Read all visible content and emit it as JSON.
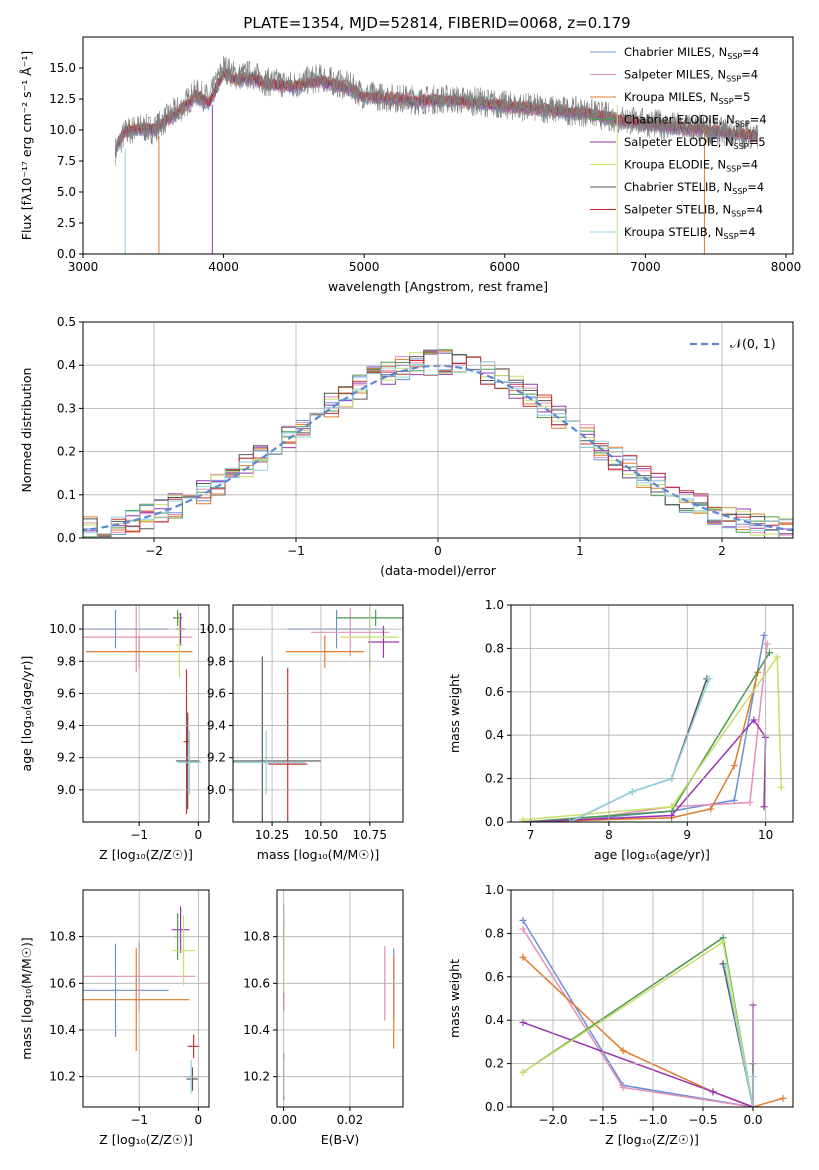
{
  "figure": {
    "title": "PLATE=1354, MJD=52814, FIBERID=0068, z=0.179"
  },
  "colors": [
    "#6b8fd6",
    "#e58fb9",
    "#e07b2c",
    "#4c9a4c",
    "#9a35b0",
    "#c8e06a",
    "#555555",
    "#c83232",
    "#8fd4e0"
  ],
  "chart_data": [
    {
      "id": "spectrum",
      "type": "line",
      "title": "PLATE=1354, MJD=52814, FIBERID=0068, z=0.179",
      "xlabel": "wavelength [Angstrom, rest frame]",
      "ylabel": "Flux [fλ10⁻¹⁷ erg cm⁻² s⁻¹ Å⁻¹]",
      "xlim": [
        3000,
        8050
      ],
      "ylim": [
        0,
        17.5
      ],
      "xticks": [
        "3000",
        "4000",
        "5000",
        "6000",
        "7000",
        "8000"
      ],
      "yticks": [
        "0.0",
        "2.5",
        "5.0",
        "7.5",
        "10.0",
        "12.5",
        "15.0"
      ],
      "legend_position": "right",
      "data_color": "#808080",
      "data": {
        "x": [
          3230,
          3300,
          3400,
          3500,
          3600,
          3700,
          3800,
          3900,
          4000,
          4100,
          4200,
          4300,
          4400,
          4500,
          4600,
          4700,
          4800,
          4900,
          5000,
          5200,
          5400,
          5600,
          5800,
          6000,
          6200,
          6400,
          6600,
          6800,
          7000,
          7200,
          7400,
          7600,
          7800
        ],
        "y": [
          8.3,
          9.8,
          10.2,
          10.0,
          11.0,
          11.8,
          13.0,
          12.5,
          15.0,
          14.3,
          14.5,
          13.9,
          13.8,
          13.6,
          14.0,
          14.2,
          13.8,
          13.5,
          12.8,
          12.6,
          12.4,
          12.5,
          12.3,
          12.0,
          11.8,
          11.6,
          11.4,
          10.9,
          10.6,
          10.3,
          10.1,
          9.8,
          9.6
        ]
      },
      "model": {
        "x": [
          3230,
          3300,
          3400,
          3500,
          3600,
          3700,
          3800,
          3900,
          4000,
          4100,
          4200,
          4300,
          4400,
          4500,
          4600,
          4700,
          4800,
          4900,
          5000,
          5200,
          5400,
          5600,
          5800,
          6000,
          6200,
          6400,
          6600,
          6800,
          7000,
          7200,
          7400,
          7600,
          7800
        ],
        "y": [
          8.5,
          9.9,
          10.1,
          10.0,
          10.8,
          11.6,
          12.7,
          12.2,
          14.6,
          14.0,
          14.2,
          13.7,
          13.6,
          13.5,
          13.8,
          13.9,
          13.6,
          13.3,
          12.7,
          12.5,
          12.3,
          12.4,
          12.2,
          11.9,
          11.7,
          11.5,
          11.3,
          10.8,
          10.5,
          10.2,
          10.0,
          9.7,
          9.5
        ]
      },
      "series": [
        {
          "name": "Chabrier MILES, N",
          "sub": "SSP",
          "suffix": "=4",
          "color_index": 0
        },
        {
          "name": "Salpeter MILES, N",
          "sub": "SSP",
          "suffix": "=4",
          "color_index": 1
        },
        {
          "name": "Kroupa MILES, N",
          "sub": "SSP",
          "suffix": "=5",
          "color_index": 2
        },
        {
          "name": "Chabrier ELODIE, N",
          "sub": "SSP",
          "suffix": "=4",
          "color_index": 3
        },
        {
          "name": "Salpeter ELODIE, N",
          "sub": "SSP",
          "suffix": "=5",
          "color_index": 4
        },
        {
          "name": "Kroupa ELODIE, N",
          "sub": "SSP",
          "suffix": "=4",
          "color_index": 5
        },
        {
          "name": "Chabrier STELIB, N",
          "sub": "SSP",
          "suffix": "=4",
          "color_index": 6
        },
        {
          "name": "Salpeter STELIB, N",
          "sub": "SSP",
          "suffix": "=4",
          "color_index": 7
        },
        {
          "name": "Kroupa STELIB, N",
          "sub": "SSP",
          "suffix": "=4",
          "color_index": 8
        }
      ]
    },
    {
      "id": "residuals",
      "type": "histogram",
      "xlabel": "(data-model)/error",
      "ylabel": "Normed distribution",
      "xlim": [
        -2.5,
        2.5
      ],
      "ylim": [
        0,
        0.5
      ],
      "xticks": [
        "−2",
        "−1",
        "0",
        "1",
        "2"
      ],
      "yticks": [
        "0.0",
        "0.1",
        "0.2",
        "0.3",
        "0.4",
        "0.5"
      ],
      "grid": true,
      "legend_label": "𝒩(0, 1)",
      "legend_position": "top-right",
      "gauss_color": "#5b87d4"
    },
    {
      "id": "age-vs-Z",
      "type": "errorbar",
      "xlabel": "Z [log₁₀(Z/Z☉)]",
      "ylabel": "age  [log₁₀(age/yr)]",
      "xlim": [
        -1.95,
        0.18
      ],
      "ylim": [
        8.8,
        10.15
      ],
      "xticks": [
        {
          "v": -1,
          "t": "−1"
        },
        {
          "v": 0,
          "t": "0"
        }
      ],
      "yticks": [
        {
          "v": 9.0,
          "t": "9.0"
        },
        {
          "v": 9.2,
          "t": "9.2"
        },
        {
          "v": 9.4,
          "t": "9.4"
        },
        {
          "v": 9.6,
          "t": "9.6"
        },
        {
          "v": 9.8,
          "t": "9.8"
        },
        {
          "v": 10.0,
          "t": "10.0"
        }
      ],
      "points": [
        {
          "c": 0,
          "x": -1.4,
          "y": 10.0,
          "xe": 0.9,
          "ye": 0.12
        },
        {
          "c": 1,
          "x": -1.05,
          "y": 9.95,
          "xe": 0.95,
          "ye": 0.22
        },
        {
          "c": 2,
          "x": -1.0,
          "y": 9.86,
          "xe": 0.9,
          "ye": 0.1
        },
        {
          "c": 3,
          "x": -0.35,
          "y": 10.07,
          "xe": 0.08,
          "ye": 0.05
        },
        {
          "c": 4,
          "x": -0.3,
          "y": 10.0,
          "xe": 0.08,
          "ye": 0.1
        },
        {
          "c": 5,
          "x": -0.32,
          "y": 9.9,
          "xe": 0.05,
          "ye": 0.2
        },
        {
          "c": 6,
          "x": -0.18,
          "y": 9.18,
          "xe": 0.2,
          "ye": 0.3
        },
        {
          "c": 7,
          "x": -0.2,
          "y": 9.3,
          "xe": 0.05,
          "ye": 0.45
        },
        {
          "c": 8,
          "x": -0.15,
          "y": 9.17,
          "xe": 0.2,
          "ye": 0.2
        }
      ]
    },
    {
      "id": "age-vs-mass",
      "type": "errorbar",
      "xlabel": "mass [log₁₀(M/M☉)]",
      "ylabel": "",
      "xlim": [
        10.05,
        10.92
      ],
      "ylim": [
        8.8,
        10.15
      ],
      "xticks": [
        {
          "v": 10.25,
          "t": "10.25"
        },
        {
          "v": 10.5,
          "t": "10.50"
        },
        {
          "v": 10.75,
          "t": "10.75"
        }
      ],
      "yticks": [
        {
          "v": 9.0,
          "t": "9.0"
        },
        {
          "v": 9.2,
          "t": "9.2"
        },
        {
          "v": 9.4,
          "t": "9.4"
        },
        {
          "v": 9.6,
          "t": "9.6"
        },
        {
          "v": 9.8,
          "t": "9.8"
        },
        {
          "v": 10.0,
          "t": "10.0"
        }
      ],
      "points": [
        {
          "c": 0,
          "x": 10.58,
          "y": 10.0,
          "xe": 0.25,
          "ye": 0.12
        },
        {
          "c": 1,
          "x": 10.65,
          "y": 9.98,
          "xe": 0.2,
          "ye": 0.15
        },
        {
          "c": 2,
          "x": 10.52,
          "y": 9.86,
          "xe": 0.2,
          "ye": 0.1
        },
        {
          "c": 3,
          "x": 10.78,
          "y": 10.07,
          "xe": 0.2,
          "ye": 0.05
        },
        {
          "c": 4,
          "x": 10.82,
          "y": 9.92,
          "xe": 0.08,
          "ye": 0.1
        },
        {
          "c": 5,
          "x": 10.75,
          "y": 9.95,
          "xe": 0.15,
          "ye": 0.2
        },
        {
          "c": 6,
          "x": 10.2,
          "y": 9.18,
          "xe": 0.3,
          "ye": 0.65
        },
        {
          "c": 7,
          "x": 10.33,
          "y": 9.16,
          "xe": 0.1,
          "ye": 0.6
        },
        {
          "c": 8,
          "x": 10.22,
          "y": 9.17,
          "xe": 0.2,
          "ye": 0.2
        }
      ]
    },
    {
      "id": "weight-vs-age",
      "type": "line",
      "xlabel": "age  [log₁₀(age/yr)]",
      "ylabel": "mass weight",
      "xlim": [
        6.75,
        10.35
      ],
      "ylim": [
        0,
        1.0
      ],
      "xticks": [
        {
          "v": 7,
          "t": "7"
        },
        {
          "v": 8,
          "t": "8"
        },
        {
          "v": 9,
          "t": "9"
        },
        {
          "v": 10,
          "t": "10"
        }
      ],
      "yticks": [
        {
          "v": 0,
          "t": "0.0"
        },
        {
          "v": 0.2,
          "t": "0.2"
        },
        {
          "v": 0.4,
          "t": "0.4"
        },
        {
          "v": 0.6,
          "t": "0.6"
        },
        {
          "v": 0.8,
          "t": "0.8"
        },
        {
          "v": 1.0,
          "t": "1.0"
        }
      ],
      "lines": [
        {
          "c": 0,
          "x": [
            6.9,
            7.6,
            8.8,
            9.6,
            9.98
          ],
          "y": [
            0.0,
            0.01,
            0.05,
            0.1,
            0.86
          ]
        },
        {
          "c": 1,
          "x": [
            6.9,
            7.6,
            8.8,
            9.8,
            10.02
          ],
          "y": [
            0.0,
            0.01,
            0.07,
            0.09,
            0.82
          ]
        },
        {
          "c": 2,
          "x": [
            7.0,
            8.8,
            9.3,
            9.6,
            9.9
          ],
          "y": [
            0.0,
            0.02,
            0.06,
            0.26,
            0.69
          ]
        },
        {
          "c": 3,
          "x": [
            6.9,
            8.8,
            10.05
          ],
          "y": [
            0.0,
            0.05,
            0.78
          ]
        },
        {
          "c": 4,
          "x": [
            7.0,
            8.8,
            9.85,
            10.0,
            9.98
          ],
          "y": [
            0.0,
            0.03,
            0.47,
            0.39,
            0.07
          ]
        },
        {
          "c": 5,
          "x": [
            6.9,
            8.8,
            10.15
          ],
          "y": [
            0.01,
            0.07,
            0.76
          ]
        },
        {
          "c": 6,
          "x": [
            7.5,
            8.3,
            8.8,
            9.25
          ],
          "y": [
            0.0,
            0.14,
            0.2,
            0.66
          ]
        },
        {
          "c": 5,
          "x": [
            10.15,
            10.2
          ],
          "y": [
            0.76,
            0.16
          ]
        },
        {
          "c": 8,
          "x": [
            7.5,
            8.3,
            8.8,
            9.28
          ],
          "y": [
            0.0,
            0.14,
            0.2,
            0.66
          ]
        }
      ]
    },
    {
      "id": "mass-vs-Z",
      "type": "errorbar",
      "xlabel": "Z [log₁₀(Z/Z☉)]",
      "ylabel": "mass [log₁₀(M/M☉)]",
      "xlim": [
        -1.95,
        0.18
      ],
      "ylim": [
        10.07,
        11.0
      ],
      "xticks": [
        {
          "v": -1,
          "t": "−1"
        },
        {
          "v": 0,
          "t": "0"
        }
      ],
      "yticks": [
        {
          "v": 10.2,
          "t": "10.2"
        },
        {
          "v": 10.4,
          "t": "10.4"
        },
        {
          "v": 10.6,
          "t": "10.6"
        },
        {
          "v": 10.8,
          "t": "10.8"
        }
      ],
      "points": [
        {
          "c": 0,
          "x": -1.4,
          "y": 10.57,
          "xe": 0.9,
          "ye": 0.2
        },
        {
          "c": 1,
          "x": -1.0,
          "y": 10.63,
          "xe": 0.95,
          "ye": 0.15
        },
        {
          "c": 2,
          "x": -1.05,
          "y": 10.53,
          "xe": 0.9,
          "ye": 0.22
        },
        {
          "c": 3,
          "x": -0.35,
          "y": 10.8,
          "xe": 0.05,
          "ye": 0.1
        },
        {
          "c": 4,
          "x": -0.3,
          "y": 10.83,
          "xe": 0.15,
          "ye": 0.1
        },
        {
          "c": 5,
          "x": -0.25,
          "y": 10.74,
          "xe": 0.2,
          "ye": 0.15
        },
        {
          "c": 6,
          "x": -0.1,
          "y": 10.19,
          "xe": 0.1,
          "ye": 0.05
        },
        {
          "c": 7,
          "x": -0.08,
          "y": 10.33,
          "xe": 0.1,
          "ye": 0.05
        },
        {
          "c": 8,
          "x": -0.12,
          "y": 10.2,
          "xe": 0.12,
          "ye": 0.07
        }
      ]
    },
    {
      "id": "mass-vs-EBV",
      "type": "errorbar",
      "xlabel": "E(B-V)",
      "ylabel": "",
      "xlim": [
        -0.002,
        0.036
      ],
      "ylim": [
        10.07,
        11.0
      ],
      "xticks": [
        {
          "v": 0,
          "t": "0.00"
        },
        {
          "v": 0.02,
          "t": "0.02"
        }
      ],
      "yticks": [
        {
          "v": 10.2,
          "t": "10.2"
        },
        {
          "v": 10.4,
          "t": "10.4"
        },
        {
          "v": 10.6,
          "t": "10.6"
        },
        {
          "v": 10.8,
          "t": "10.8"
        }
      ],
      "points": [
        {
          "c": 0,
          "x": 0.0332,
          "y": 10.6,
          "xe": 0,
          "ye": 0.15
        },
        {
          "c": 1,
          "x": 0.0305,
          "y": 10.6,
          "xe": 0,
          "ye": 0.16
        },
        {
          "c": 2,
          "x": 0.0332,
          "y": 10.52,
          "xe": 0,
          "ye": 0.2
        },
        {
          "c": 3,
          "x": 0.0,
          "y": 10.8,
          "xe": 0,
          "ye": 0.1
        },
        {
          "c": 4,
          "x": 0.0,
          "y": 10.88,
          "xe": 0,
          "ye": 0.06
        },
        {
          "c": 5,
          "x": 0.0,
          "y": 10.74,
          "xe": 0,
          "ye": 0.2
        },
        {
          "c": 6,
          "x": 0.0,
          "y": 10.2,
          "xe": 0,
          "ye": 0.1
        },
        {
          "c": 7,
          "x": 0.0,
          "y": 10.52,
          "xe": 0,
          "ye": 0.04
        },
        {
          "c": 8,
          "x": 0.0,
          "y": 10.2,
          "xe": 0,
          "ye": 0.08
        }
      ]
    },
    {
      "id": "weight-vs-Z",
      "type": "line",
      "xlabel": "Z [log₁₀(Z/Z☉)]",
      "ylabel": "mass weight",
      "xlim": [
        -2.42,
        0.4
      ],
      "ylim": [
        0,
        1.0
      ],
      "xticks": [
        {
          "v": -2,
          "t": "−2.0"
        },
        {
          "v": -1.5,
          "t": "−1.5"
        },
        {
          "v": -1,
          "t": "−1.0"
        },
        {
          "v": -0.5,
          "t": "−0.5"
        },
        {
          "v": 0,
          "t": "0.0"
        }
      ],
      "yticks": [
        {
          "v": 0,
          "t": "0.0"
        },
        {
          "v": 0.2,
          "t": "0.2"
        },
        {
          "v": 0.4,
          "t": "0.4"
        },
        {
          "v": 0.6,
          "t": "0.6"
        },
        {
          "v": 0.8,
          "t": "0.8"
        },
        {
          "v": 1.0,
          "t": "1.0"
        }
      ],
      "lines": [
        {
          "c": 0,
          "x": [
            -2.3,
            -1.3,
            0.0
          ],
          "y": [
            0.86,
            0.1,
            0.0
          ]
        },
        {
          "c": 1,
          "x": [
            -2.3,
            -1.3,
            0.0
          ],
          "y": [
            0.82,
            0.09,
            0.0
          ]
        },
        {
          "c": 2,
          "x": [
            -2.3,
            -1.3,
            -0.4,
            0.0,
            0.3
          ],
          "y": [
            0.69,
            0.26,
            0.07,
            0.0,
            0.04
          ]
        },
        {
          "c": 3,
          "x": [
            -2.3,
            -0.3,
            0.0
          ],
          "y": [
            0.16,
            0.78,
            0.0
          ]
        },
        {
          "c": 4,
          "x": [
            -2.3,
            -0.4,
            0.0,
            0.0
          ],
          "y": [
            0.39,
            0.07,
            0.0,
            0.47
          ]
        },
        {
          "c": 5,
          "x": [
            -2.3,
            -0.3,
            0.0
          ],
          "y": [
            0.16,
            0.76,
            0.0
          ]
        },
        {
          "c": 6,
          "x": [
            -0.3,
            0.0,
            0.0
          ],
          "y": [
            0.66,
            0.0,
            0.2
          ]
        },
        {
          "c": 8,
          "x": [
            -0.28,
            0.0,
            0.0
          ],
          "y": [
            0.65,
            0.0,
            0.14
          ]
        }
      ]
    }
  ]
}
